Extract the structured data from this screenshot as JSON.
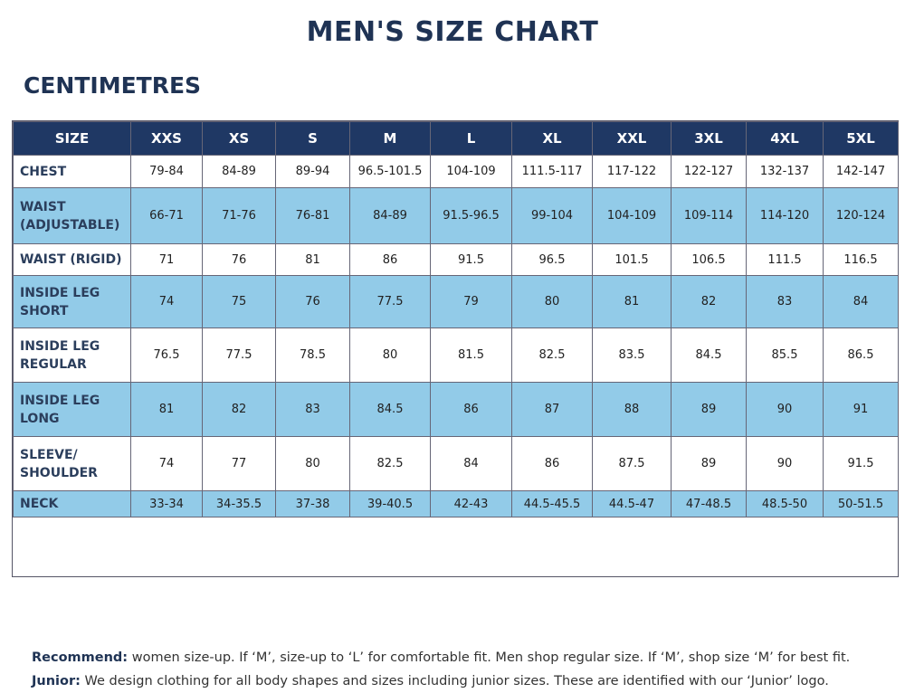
{
  "title": "MEN'S SIZE CHART",
  "subtitle": "CENTIMETRES",
  "table": {
    "header": [
      "SIZE",
      "XXS",
      "XS",
      "S",
      "M",
      "L",
      "XL",
      "XXL",
      "3XL",
      "4XL",
      "5XL"
    ],
    "rows": [
      {
        "label": [
          "CHEST"
        ],
        "cells": [
          "79-84",
          "84-89",
          "89-94",
          "96.5-101.5",
          "104-109",
          "111.5-117",
          "117-122",
          "122-127",
          "132-137",
          "142-147"
        ]
      },
      {
        "label": [
          "WAIST",
          "(ADJUSTABLE)"
        ],
        "cells": [
          "66-71",
          "71-76",
          "76-81",
          "84-89",
          "91.5-96.5",
          "99-104",
          "104-109",
          "109-114",
          "114-120",
          "120-124"
        ]
      },
      {
        "label": [
          "WAIST (RIGID)"
        ],
        "cells": [
          "71",
          "76",
          "81",
          "86",
          "91.5",
          "96.5",
          "101.5",
          "106.5",
          "111.5",
          "116.5"
        ]
      },
      {
        "label": [
          "INSIDE LEG",
          "SHORT"
        ],
        "cells": [
          "74",
          "75",
          "76",
          "77.5",
          "79",
          "80",
          "81",
          "82",
          "83",
          "84"
        ]
      },
      {
        "label": [
          "INSIDE LEG",
          "REGULAR"
        ],
        "cells": [
          "76.5",
          "77.5",
          "78.5",
          "80",
          "81.5",
          "82.5",
          "83.5",
          "84.5",
          "85.5",
          "86.5"
        ]
      },
      {
        "label": [
          "INSIDE LEG",
          "LONG"
        ],
        "cells": [
          "81",
          "82",
          "83",
          "84.5",
          "86",
          "87",
          "88",
          "89",
          "90",
          "91"
        ]
      },
      {
        "label": [
          "SLEEVE/",
          "SHOULDER"
        ],
        "cells": [
          "74",
          "77",
          "80",
          "82.5",
          "84",
          "86",
          "87.5",
          "89",
          "90",
          "91.5"
        ]
      },
      {
        "label": [
          "NECK"
        ],
        "cells": [
          "33-34",
          "34-35.5",
          "37-38",
          "39-40.5",
          "42-43",
          "44.5-45.5",
          "44.5-47",
          "47-48.5",
          "48.5-50",
          "50-51.5"
        ]
      }
    ]
  },
  "notes": [
    {
      "label": "Recommend:",
      "text": "women size-up. If ‘M’, size-up to ‘L’ for comfortable fit. Men shop regular size. If ‘M’, shop size ‘M’ for best fit."
    },
    {
      "label": "Junior:",
      "text": "We design clothing for all body shapes and sizes including junior sizes. These are identified with our ‘Junior’ logo."
    }
  ]
}
